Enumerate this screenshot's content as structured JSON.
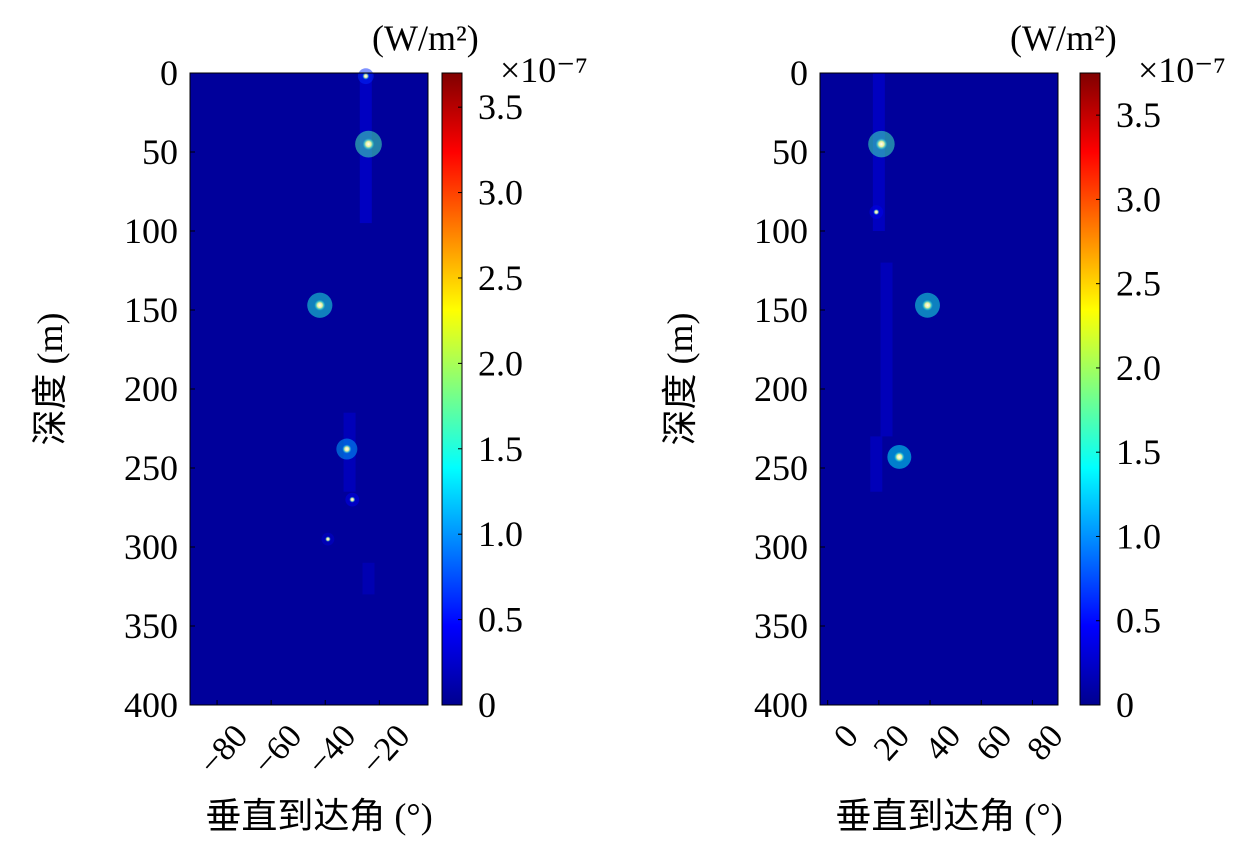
{
  "chart_data": [
    {
      "type": "heatmap",
      "xlabel": "垂直到达角 (°)",
      "ylabel": "深度 (m)",
      "xlim": [
        -90,
        -2
      ],
      "ylim": [
        0,
        400
      ],
      "x_ticks": [
        "−80",
        "−60",
        "−40",
        "−20"
      ],
      "x_tick_values": [
        -80,
        -60,
        -40,
        -20
      ],
      "y_ticks": [
        "0",
        "50",
        "100",
        "150",
        "200",
        "250",
        "300",
        "350",
        "400"
      ],
      "y_tick_values": [
        0,
        50,
        100,
        150,
        200,
        250,
        300,
        350,
        400
      ],
      "colorbar": {
        "unit_label": "(W/m²)",
        "exponent_label": "×10⁻⁷",
        "range": [
          0,
          3.7
        ],
        "ticks": [
          "0",
          "0.5",
          "1.0",
          "1.5",
          "2.0",
          "2.5",
          "3.0",
          "3.5"
        ],
        "tick_values": [
          0,
          0.5,
          1.0,
          1.5,
          2.0,
          2.5,
          3.0,
          3.5
        ],
        "colormap": "jet"
      },
      "background_value": 0.1,
      "streak_segments": [
        {
          "x": -25,
          "y0": 0,
          "y1": 95,
          "value": 0.35
        },
        {
          "x": -31,
          "y0": 215,
          "y1": 265,
          "value": 0.3
        },
        {
          "x": -24,
          "y0": 310,
          "y1": 330,
          "value": 0.25
        }
      ],
      "peaks": [
        {
          "angle": -24,
          "depth": 45,
          "value": 3.3
        },
        {
          "angle": -42,
          "depth": 147,
          "value": 3.0
        },
        {
          "angle": -32,
          "depth": 238,
          "value": 2.2
        },
        {
          "angle": -25,
          "depth": 2,
          "value": 1.2
        },
        {
          "angle": -30,
          "depth": 270,
          "value": 0.8
        },
        {
          "angle": -39,
          "depth": 295,
          "value": 0.6
        }
      ]
    },
    {
      "type": "heatmap",
      "xlabel": "垂直到达角 (°)",
      "ylabel": "深度 (m)",
      "xlim": [
        -3,
        90
      ],
      "ylim": [
        0,
        400
      ],
      "x_ticks": [
        "0",
        "20",
        "40",
        "60",
        "80"
      ],
      "x_tick_values": [
        0,
        20,
        40,
        60,
        80
      ],
      "y_ticks": [
        "0",
        "50",
        "100",
        "150",
        "200",
        "250",
        "300",
        "350",
        "400"
      ],
      "y_tick_values": [
        0,
        50,
        100,
        150,
        200,
        250,
        300,
        350,
        400
      ],
      "colorbar": {
        "unit_label": "(W/m²)",
        "exponent_label": "×10⁻⁷",
        "range": [
          0,
          3.75
        ],
        "ticks": [
          "0",
          "0.5",
          "1.0",
          "1.5",
          "2.0",
          "2.5",
          "3.0",
          "3.5"
        ],
        "tick_values": [
          0,
          0.5,
          1.0,
          1.5,
          2.0,
          2.5,
          3.0,
          3.5
        ],
        "colormap": "jet"
      },
      "background_value": 0.1,
      "streak_segments": [
        {
          "x": 20,
          "y0": 0,
          "y1": 100,
          "value": 0.35
        },
        {
          "x": 23,
          "y0": 120,
          "y1": 230,
          "value": 0.3
        },
        {
          "x": 19,
          "y0": 230,
          "y1": 265,
          "value": 0.3
        }
      ],
      "peaks": [
        {
          "angle": 21,
          "depth": 45,
          "value": 3.3
        },
        {
          "angle": 39,
          "depth": 147,
          "value": 3.0
        },
        {
          "angle": 28,
          "depth": 243,
          "value": 2.8
        },
        {
          "angle": 19,
          "depth": 88,
          "value": 0.8
        }
      ]
    }
  ]
}
